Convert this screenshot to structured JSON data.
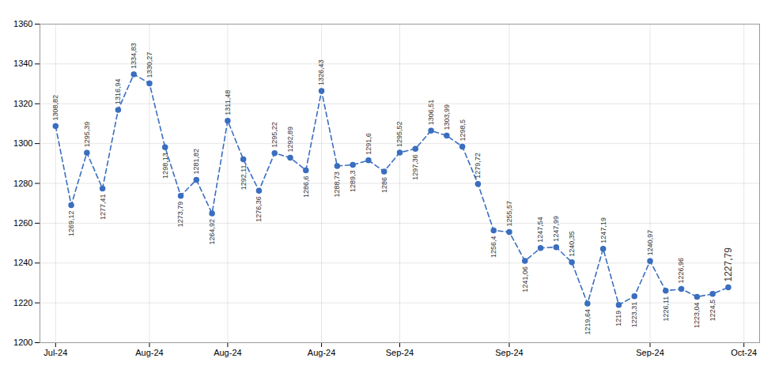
{
  "chart_data": {
    "type": "line",
    "x": [
      0,
      1,
      2,
      3,
      4,
      5,
      6,
      7,
      8,
      9,
      10,
      11,
      12,
      13,
      14,
      15,
      16,
      17,
      18,
      19,
      20,
      21,
      22,
      23,
      24,
      25,
      26,
      27,
      28,
      29,
      30,
      31,
      32,
      33,
      34,
      35,
      36,
      37,
      38,
      39,
      40,
      41,
      42,
      43
    ],
    "values": [
      1308.82,
      1269.12,
      1295.39,
      1277.41,
      1316.94,
      1334.83,
      1330.27,
      1298.13,
      1273.79,
      1281.82,
      1264.92,
      1311.48,
      1292.11,
      1276.36,
      1295.22,
      1292.89,
      1286.6,
      1326.43,
      1288.73,
      1289.3,
      1291.6,
      1286.0,
      1295.52,
      1297.36,
      1306.51,
      1303.99,
      1298.5,
      1279.72,
      1256.4,
      1255.57,
      1241.06,
      1247.54,
      1247.99,
      1240.35,
      1219.64,
      1247.19,
      1219.0,
      1223.31,
      1240.97,
      1226.11,
      1226.96,
      1223.04,
      1224.5,
      1227.79
    ],
    "value_labels": [
      "1308,82",
      "1269,12",
      "1295,39",
      "1277,41",
      "1316,94",
      "1334,83",
      "1330,27",
      "1298,13",
      "1273,79",
      "1281,82",
      "1264,92",
      "1311,48",
      "1292,11",
      "1276,36",
      "1295,22",
      "1292,89",
      "1286,6",
      "1326,43",
      "1288,73",
      "1289,3",
      "1291,6",
      "1286",
      "1295,52",
      "1297,36",
      "1306,51",
      "1303,99",
      "1298,5",
      "1279,72",
      "1256,4",
      "1255,57",
      "1241,06",
      "1247,54",
      "1247,99",
      "1240,35",
      "1219,64",
      "1247,19",
      "1219",
      "1223,31",
      "1240,97",
      "1226,11",
      "1226,96",
      "1223,04",
      "1224,5",
      "1227,79"
    ],
    "data_labels": true,
    "color": "#3A6EBF",
    "line_style": "dashed",
    "marker": "o",
    "xlim": [
      -1,
      45
    ],
    "xticks": [
      {
        "value": 0,
        "label": "Jul-24"
      },
      {
        "value": 6,
        "label": "Aug-24"
      },
      {
        "value": 11,
        "label": "Aug-24"
      },
      {
        "value": 17,
        "label": "Aug-24"
      },
      {
        "value": 22,
        "label": "Sep-24"
      },
      {
        "value": 29,
        "label": "Sep-24"
      },
      {
        "value": 38,
        "label": "Sep-24"
      },
      {
        "value": 44,
        "label": "Oct-24"
      }
    ],
    "ylim": [
      1200,
      1360
    ],
    "yticks": [
      1200,
      1220,
      1240,
      1260,
      1280,
      1300,
      1320,
      1340,
      1360
    ],
    "grid": true
  }
}
